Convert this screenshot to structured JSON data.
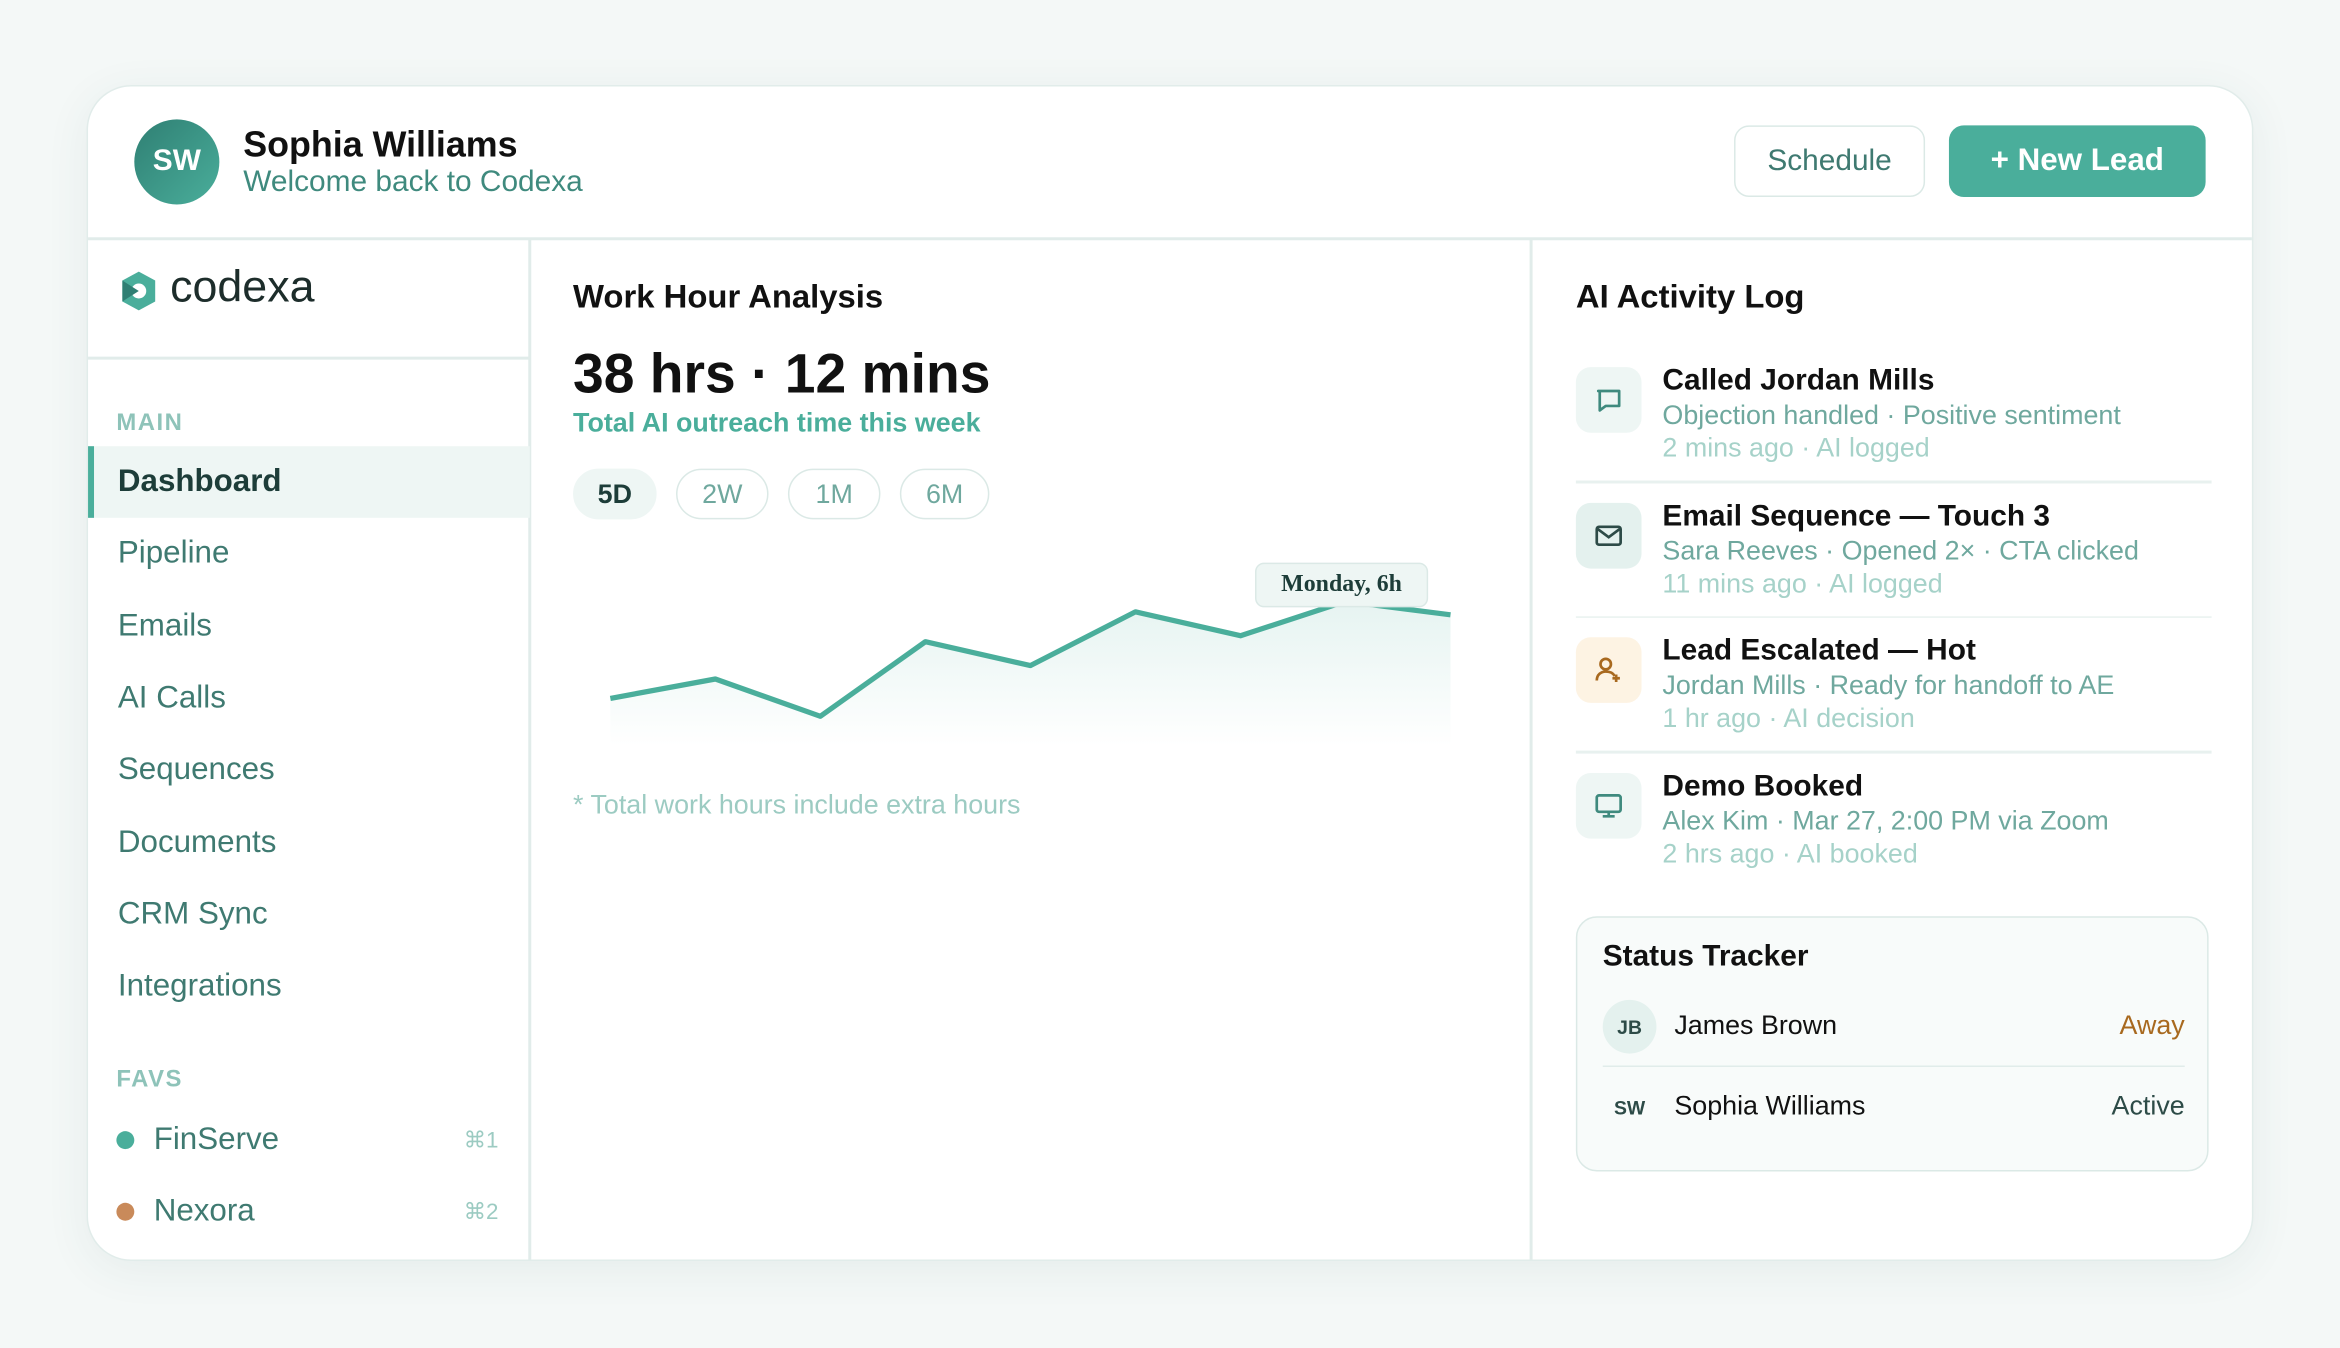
{
  "header": {
    "avatar": "SW",
    "name": "Sophia Williams",
    "subtitle": "Welcome back to Codexa",
    "buttons": [
      "Schedule",
      "+ New Lead"
    ]
  },
  "sidebar": {
    "logo": "codexa",
    "main_label": "MAIN",
    "nav": [
      "Dashboard",
      "Pipeline",
      "Emails",
      "AI Calls",
      "Sequences",
      "Documents",
      "CRM Sync",
      "Integrations"
    ],
    "favs_label": "FAVS",
    "favs": [
      {
        "name": "FinServe",
        "shortcut": "⌘1",
        "color": "#4aae9b"
      },
      {
        "name": "Nexora",
        "shortcut": "⌘2",
        "color": "#c98a5a"
      }
    ]
  },
  "work": {
    "title": "Work Hour Analysis",
    "total": "38 hrs · 12 mins",
    "subtitle": "Total AI outreach time this week",
    "ranges": [
      "5D",
      "2W",
      "1M",
      "6M"
    ],
    "tooltip": "Monday, 6h",
    "values": [
      32,
      45,
      20,
      70,
      54,
      90,
      74,
      97,
      88
    ],
    "note": "* Total work hours include extra hours"
  },
  "activity": {
    "title": "AI Activity Log",
    "items": [
      {
        "title": "Called Jordan Mills",
        "detail": "Objection handled · Positive sentiment",
        "meta": "2 mins ago · AI logged",
        "icon": "chat"
      },
      {
        "title": "Email Sequence — Touch 3",
        "detail": "Sara Reeves · Opened 2× · CTA clicked",
        "meta": "11 mins ago · AI logged",
        "icon": "mail"
      },
      {
        "title": "Lead Escalated — Hot",
        "detail": "Jordan Mills · Ready for handoff to AE",
        "meta": "1 hr ago · AI decision",
        "icon": "user"
      },
      {
        "title": "Demo Booked",
        "detail": "Alex Kim · Mar 27, 2:00 PM via Zoom",
        "meta": "2 hrs ago · AI booked",
        "icon": "screen"
      }
    ]
  },
  "status": {
    "title": "Status Tracker",
    "people": [
      {
        "initials": "JB",
        "name": "James Brown",
        "status": "Away",
        "color": "#a8691f"
      },
      {
        "initials": "SW",
        "name": "Sophia Williams",
        "status": "Active",
        "color": "#2d4b47"
      }
    ]
  }
}
